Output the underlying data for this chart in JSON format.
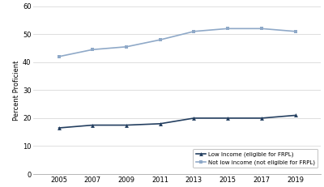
{
  "years": [
    2005,
    2007,
    2009,
    2011,
    2013,
    2015,
    2017,
    2019
  ],
  "low_income": [
    16.5,
    17.5,
    17.5,
    18.0,
    20.0,
    20.0,
    20.0,
    21.0
  ],
  "not_low_income": [
    42.0,
    44.5,
    45.5,
    48.0,
    51.0,
    52.0,
    52.0,
    51.0
  ],
  "low_income_color": "#243f60",
  "not_low_income_color": "#8fa9c8",
  "ylabel": "Percent Proficient",
  "ylim": [
    0,
    60
  ],
  "yticks": [
    0,
    10,
    20,
    30,
    40,
    50,
    60
  ],
  "legend_low": "Low Income (eligible for FRPL)",
  "legend_not_low": "Not low income (not eligible for FRPL)",
  "background_color": "#ffffff",
  "grid_color": "#d9d9d9"
}
